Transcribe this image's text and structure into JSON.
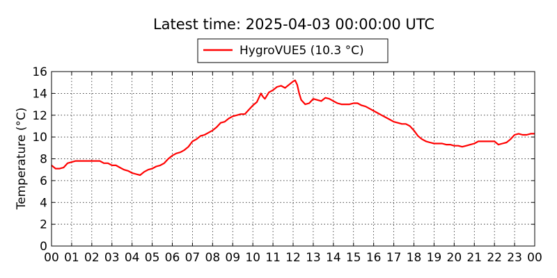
{
  "chart_data": {
    "type": "line",
    "title": "Latest time: 2025-04-03 00:00:00 UTC",
    "xlabel": "",
    "ylabel": "Temperature (°C)",
    "xlim": [
      0,
      24
    ],
    "ylim": [
      0,
      16
    ],
    "x_ticks": [
      "00",
      "01",
      "02",
      "03",
      "04",
      "05",
      "06",
      "07",
      "08",
      "09",
      "10",
      "11",
      "12",
      "13",
      "14",
      "15",
      "16",
      "17",
      "18",
      "19",
      "20",
      "21",
      "22",
      "23",
      "00"
    ],
    "y_ticks": [
      "0",
      "2",
      "4",
      "6",
      "8",
      "10",
      "12",
      "14",
      "16"
    ],
    "grid": true,
    "legend_position": "top-center",
    "series": [
      {
        "name": "HygroVUE5 (10.3 °C)",
        "color": "#ff0000",
        "x": [
          0,
          0.2,
          0.4,
          0.6,
          0.8,
          1.0,
          1.2,
          1.4,
          1.6,
          1.8,
          2.0,
          2.2,
          2.4,
          2.6,
          2.8,
          3.0,
          3.2,
          3.4,
          3.6,
          3.8,
          4.0,
          4.2,
          4.4,
          4.6,
          4.8,
          5.0,
          5.2,
          5.4,
          5.6,
          5.8,
          6.0,
          6.2,
          6.4,
          6.6,
          6.8,
          7.0,
          7.2,
          7.4,
          7.6,
          7.8,
          8.0,
          8.2,
          8.4,
          8.6,
          8.8,
          9.0,
          9.2,
          9.4,
          9.6,
          9.8,
          10.0,
          10.2,
          10.3,
          10.4,
          10.5,
          10.6,
          10.8,
          11.0,
          11.2,
          11.4,
          11.6,
          11.8,
          12.0,
          12.1,
          12.2,
          12.3,
          12.4,
          12.6,
          12.8,
          13.0,
          13.2,
          13.4,
          13.6,
          13.8,
          14.0,
          14.2,
          14.4,
          14.6,
          14.8,
          15.0,
          15.2,
          15.4,
          15.6,
          15.8,
          16.0,
          16.2,
          16.4,
          16.6,
          16.8,
          17.0,
          17.2,
          17.4,
          17.6,
          17.8,
          18.0,
          18.2,
          18.4,
          18.6,
          18.8,
          19.0,
          19.2,
          19.4,
          19.6,
          19.8,
          20.0,
          20.2,
          20.4,
          20.6,
          20.8,
          21.0,
          21.2,
          21.4,
          21.6,
          21.8,
          22.0,
          22.2,
          22.4,
          22.6,
          22.8,
          23.0,
          23.2,
          23.4,
          23.6,
          23.8,
          24.0
        ],
        "y": [
          7.4,
          7.1,
          7.1,
          7.2,
          7.6,
          7.7,
          7.8,
          7.8,
          7.8,
          7.8,
          7.8,
          7.8,
          7.8,
          7.6,
          7.6,
          7.4,
          7.4,
          7.2,
          7.0,
          6.9,
          6.7,
          6.6,
          6.5,
          6.8,
          7.0,
          7.1,
          7.3,
          7.4,
          7.6,
          8.0,
          8.3,
          8.5,
          8.6,
          8.8,
          9.1,
          9.6,
          9.8,
          10.1,
          10.2,
          10.4,
          10.6,
          10.9,
          11.3,
          11.4,
          11.7,
          11.9,
          12.0,
          12.1,
          12.1,
          12.5,
          12.9,
          13.2,
          13.6,
          14.0,
          13.7,
          13.5,
          14.1,
          14.3,
          14.6,
          14.7,
          14.5,
          14.8,
          15.1,
          15.2,
          14.8,
          14.0,
          13.4,
          13.0,
          13.1,
          13.5,
          13.4,
          13.3,
          13.6,
          13.5,
          13.3,
          13.1,
          13.0,
          13.0,
          13.0,
          13.1,
          13.1,
          12.9,
          12.8,
          12.6,
          12.4,
          12.2,
          12.0,
          11.8,
          11.6,
          11.4,
          11.3,
          11.2,
          11.2,
          11.0,
          10.6,
          10.1,
          9.8,
          9.6,
          9.5,
          9.4,
          9.4,
          9.4,
          9.3,
          9.3,
          9.2,
          9.2,
          9.1,
          9.2,
          9.3,
          9.4,
          9.6,
          9.6,
          9.6,
          9.6,
          9.6,
          9.3,
          9.4,
          9.5,
          9.8,
          10.2,
          10.3,
          10.2,
          10.2,
          10.3,
          10.3
        ]
      }
    ]
  }
}
